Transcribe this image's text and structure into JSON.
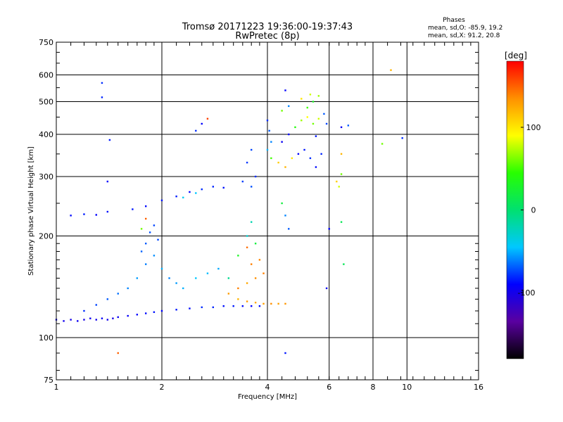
{
  "chart_data": {
    "type": "scatter",
    "title": "Tromsø 20171223 19:36:00-19:37:43",
    "subtitle": "RwPretec (8p)",
    "xlabel": "Frequency [MHz]",
    "ylabel": "Stationary phase Virtual Height [km]",
    "x_scale": "log2",
    "y_scale": "log",
    "xlim": [
      1,
      16
    ],
    "ylim": [
      75,
      750
    ],
    "x_ticks": [
      1,
      2,
      4,
      6,
      8,
      10,
      16
    ],
    "y_ticks": [
      75,
      100,
      200,
      300,
      400,
      500,
      600,
      750
    ],
    "grid": true,
    "stats_header": "Phases",
    "stats_lines": [
      "mean, sd,O: -85.9, 19.2",
      "mean, sd,X:  91.2, 20.8"
    ],
    "colorbar": {
      "label": "[deg]",
      "ticks": [
        100,
        0,
        -100
      ],
      "range": [
        -180,
        180
      ],
      "colors": [
        "#000000",
        "#5a00a0",
        "#0000ff",
        "#00c8ff",
        "#00e070",
        "#28ff00",
        "#ffff00",
        "#ff9000",
        "#ff0000"
      ]
    },
    "series": [
      {
        "points": [
          [
            1.0,
            113,
            -95
          ],
          [
            1.05,
            112,
            -98
          ],
          [
            1.1,
            113,
            -100
          ],
          [
            1.15,
            112,
            -96
          ],
          [
            1.2,
            113,
            -102
          ],
          [
            1.25,
            114,
            -97
          ],
          [
            1.3,
            113,
            -99
          ],
          [
            1.35,
            114,
            -94
          ],
          [
            1.4,
            113,
            -98
          ],
          [
            1.45,
            114,
            -101
          ],
          [
            1.5,
            115,
            -95
          ],
          [
            1.6,
            116,
            -92
          ],
          [
            1.7,
            117,
            -90
          ],
          [
            1.8,
            118,
            -88
          ],
          [
            1.9,
            119,
            -86
          ],
          [
            2.0,
            120,
            -90
          ],
          [
            2.2,
            121,
            -85
          ],
          [
            2.4,
            122,
            -88
          ],
          [
            2.6,
            123,
            -80
          ],
          [
            2.8,
            123,
            -82
          ],
          [
            3.0,
            124,
            -86
          ],
          [
            3.2,
            124,
            -84
          ],
          [
            3.4,
            124,
            -88
          ],
          [
            3.6,
            124,
            -90
          ],
          [
            3.8,
            124,
            -87
          ],
          [
            1.2,
            120,
            -80
          ],
          [
            1.3,
            125,
            -75
          ],
          [
            1.4,
            130,
            -70
          ],
          [
            1.5,
            135,
            -65
          ],
          [
            1.6,
            140,
            -60
          ],
          [
            1.7,
            150,
            -55
          ],
          [
            1.8,
            165,
            -62
          ],
          [
            1.9,
            175,
            -58
          ],
          [
            2.0,
            160,
            -50
          ],
          [
            2.1,
            150,
            -60
          ],
          [
            2.2,
            145,
            -55
          ],
          [
            2.3,
            140,
            -50
          ],
          [
            2.5,
            150,
            -45
          ],
          [
            2.7,
            155,
            -48
          ],
          [
            2.9,
            160,
            -52
          ],
          [
            1.8,
            190,
            -70
          ],
          [
            1.85,
            205,
            -72
          ],
          [
            1.9,
            215,
            -75
          ],
          [
            1.75,
            180,
            -68
          ],
          [
            1.95,
            195,
            -74
          ],
          [
            1.65,
            240,
            -85
          ],
          [
            1.8,
            245,
            -88
          ],
          [
            2.0,
            255,
            -86
          ],
          [
            2.2,
            262,
            -84
          ],
          [
            2.4,
            270,
            -90
          ],
          [
            2.6,
            275,
            -80
          ],
          [
            2.8,
            280,
            -82
          ],
          [
            3.0,
            278,
            -86
          ],
          [
            2.5,
            268,
            -45
          ],
          [
            2.3,
            260,
            -40
          ],
          [
            1.1,
            230,
            -88
          ],
          [
            1.2,
            232,
            -84
          ],
          [
            1.3,
            231,
            -90
          ],
          [
            1.4,
            236,
            -86
          ],
          [
            1.35,
            568,
            -80
          ],
          [
            1.35,
            515,
            -82
          ],
          [
            1.42,
            385,
            -84
          ],
          [
            1.5,
            90,
            150
          ],
          [
            1.4,
            290,
            -90
          ],
          [
            1.75,
            210,
            60
          ],
          [
            1.8,
            225,
            150
          ],
          [
            2.6,
            430,
            -90
          ],
          [
            2.7,
            445,
            160
          ],
          [
            2.5,
            410,
            -80
          ],
          [
            3.6,
            360,
            -75
          ],
          [
            3.5,
            330,
            -78
          ],
          [
            3.7,
            300,
            -80
          ],
          [
            3.6,
            280,
            -72
          ],
          [
            3.4,
            290,
            -76
          ],
          [
            3.6,
            220,
            -20
          ],
          [
            3.5,
            200,
            -30
          ],
          [
            3.7,
            190,
            20
          ],
          [
            3.3,
            175,
            30
          ],
          [
            3.1,
            150,
            -10
          ],
          [
            3.1,
            135,
            130
          ],
          [
            3.3,
            140,
            140
          ],
          [
            3.5,
            145,
            125
          ],
          [
            3.7,
            150,
            135
          ],
          [
            3.9,
            155,
            140
          ],
          [
            3.3,
            130,
            120
          ],
          [
            3.5,
            128,
            130
          ],
          [
            3.7,
            127,
            125
          ],
          [
            3.9,
            126,
            130
          ],
          [
            4.1,
            126,
            135
          ],
          [
            4.3,
            126,
            128
          ],
          [
            4.5,
            126,
            132
          ],
          [
            3.6,
            165,
            140
          ],
          [
            3.8,
            170,
            138
          ],
          [
            3.5,
            185,
            145
          ],
          [
            4.0,
            440,
            -80
          ],
          [
            4.05,
            410,
            -70
          ],
          [
            4.1,
            380,
            -60
          ],
          [
            4.0,
            360,
            -50
          ],
          [
            4.1,
            340,
            50
          ],
          [
            4.3,
            330,
            110
          ],
          [
            4.5,
            320,
            120
          ],
          [
            4.7,
            340,
            100
          ],
          [
            4.9,
            350,
            -90
          ],
          [
            5.1,
            360,
            -85
          ],
          [
            5.3,
            340,
            -80
          ],
          [
            5.5,
            320,
            -88
          ],
          [
            5.7,
            350,
            -82
          ],
          [
            4.4,
            380,
            -95
          ],
          [
            4.6,
            400,
            -90
          ],
          [
            4.8,
            420,
            40
          ],
          [
            5.0,
            440,
            70
          ],
          [
            5.2,
            450,
            90
          ],
          [
            5.4,
            430,
            60
          ],
          [
            5.6,
            445,
            80
          ],
          [
            5.8,
            460,
            -70
          ],
          [
            5.9,
            430,
            -75
          ],
          [
            5.2,
            480,
            50
          ],
          [
            5.4,
            500,
            30
          ],
          [
            5.6,
            520,
            70
          ],
          [
            5.0,
            510,
            100
          ],
          [
            5.3,
            525,
            80
          ],
          [
            4.4,
            470,
            60
          ],
          [
            4.6,
            485,
            -60
          ],
          [
            5.5,
            395,
            -85
          ],
          [
            4.5,
            540,
            -90
          ],
          [
            4.5,
            90,
            -85
          ],
          [
            4.4,
            250,
            20
          ],
          [
            4.5,
            230,
            -60
          ],
          [
            4.6,
            210,
            -70
          ],
          [
            6.3,
            290,
            110
          ],
          [
            6.4,
            280,
            80
          ],
          [
            6.5,
            305,
            60
          ],
          [
            6.5,
            350,
            120
          ],
          [
            6.5,
            220,
            10
          ],
          [
            6.6,
            165,
            10
          ],
          [
            6.5,
            420,
            -95
          ],
          [
            6.8,
            425,
            -70
          ],
          [
            5.9,
            140,
            -95
          ],
          [
            6.0,
            210,
            -90
          ],
          [
            8.5,
            375,
            60
          ],
          [
            9.0,
            620,
            120
          ],
          [
            9.7,
            390,
            -80
          ]
        ]
      }
    ]
  }
}
